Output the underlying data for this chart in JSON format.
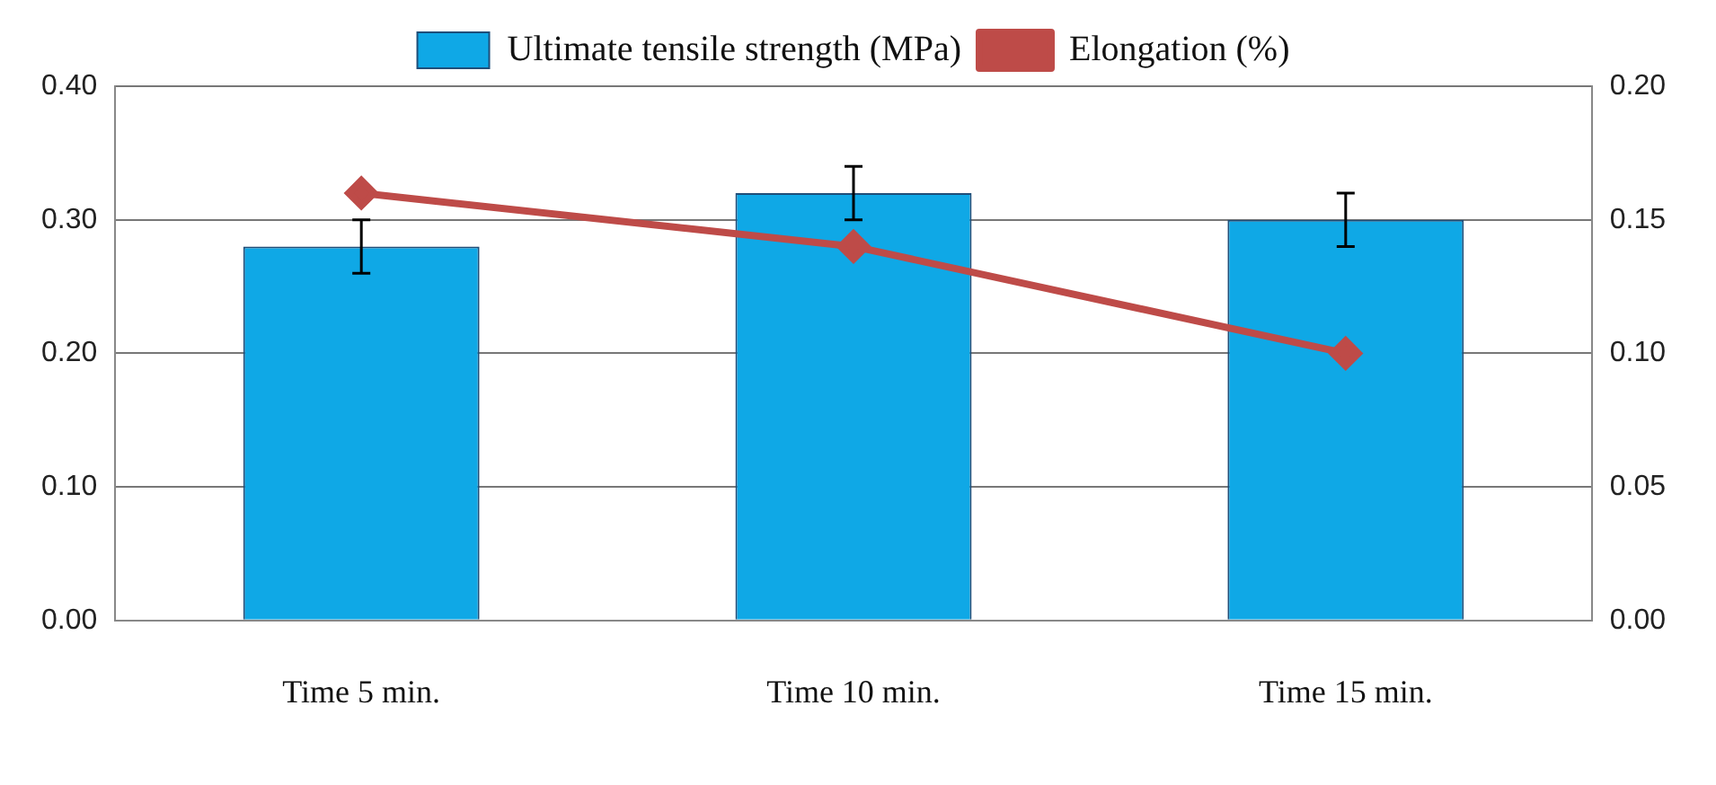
{
  "chart_data": {
    "type": "bar",
    "categories": [
      "Time 5 min.",
      "Time 10 min.",
      "Time 15 min."
    ],
    "series": [
      {
        "name": "Ultimate tensile strength (MPa)",
        "color": "#0fa8e6",
        "values": [
          0.28,
          0.32,
          0.3
        ],
        "errors": [
          0.02,
          0.02,
          0.02
        ]
      },
      {
        "name": "Elongation (%)",
        "type": "line",
        "axis": "y2",
        "color": "#be4b48",
        "values": [
          0.16,
          0.14,
          0.1
        ]
      }
    ],
    "ylim": [
      0,
      0.4
    ],
    "yticks": [
      {
        "value": 0,
        "label": "0.00"
      },
      {
        "value": 0.1,
        "label": "0.10"
      },
      {
        "value": 0.2,
        "label": "0.20"
      },
      {
        "value": 0.3,
        "label": "0.30"
      },
      {
        "value": 0.4,
        "label": "0.40"
      }
    ],
    "y2lim": [
      0,
      0.2
    ],
    "y2ticks": [
      {
        "value": 0,
        "label": "0.00"
      },
      {
        "value": 0.05,
        "label": "0.05"
      },
      {
        "value": 0.1,
        "label": "0.10"
      },
      {
        "value": 0.15,
        "label": "0.15"
      },
      {
        "value": 0.2,
        "label": "0.20"
      }
    ],
    "grid": "y",
    "legend": "top",
    "marker": "diamond",
    "line_style": "solid"
  }
}
